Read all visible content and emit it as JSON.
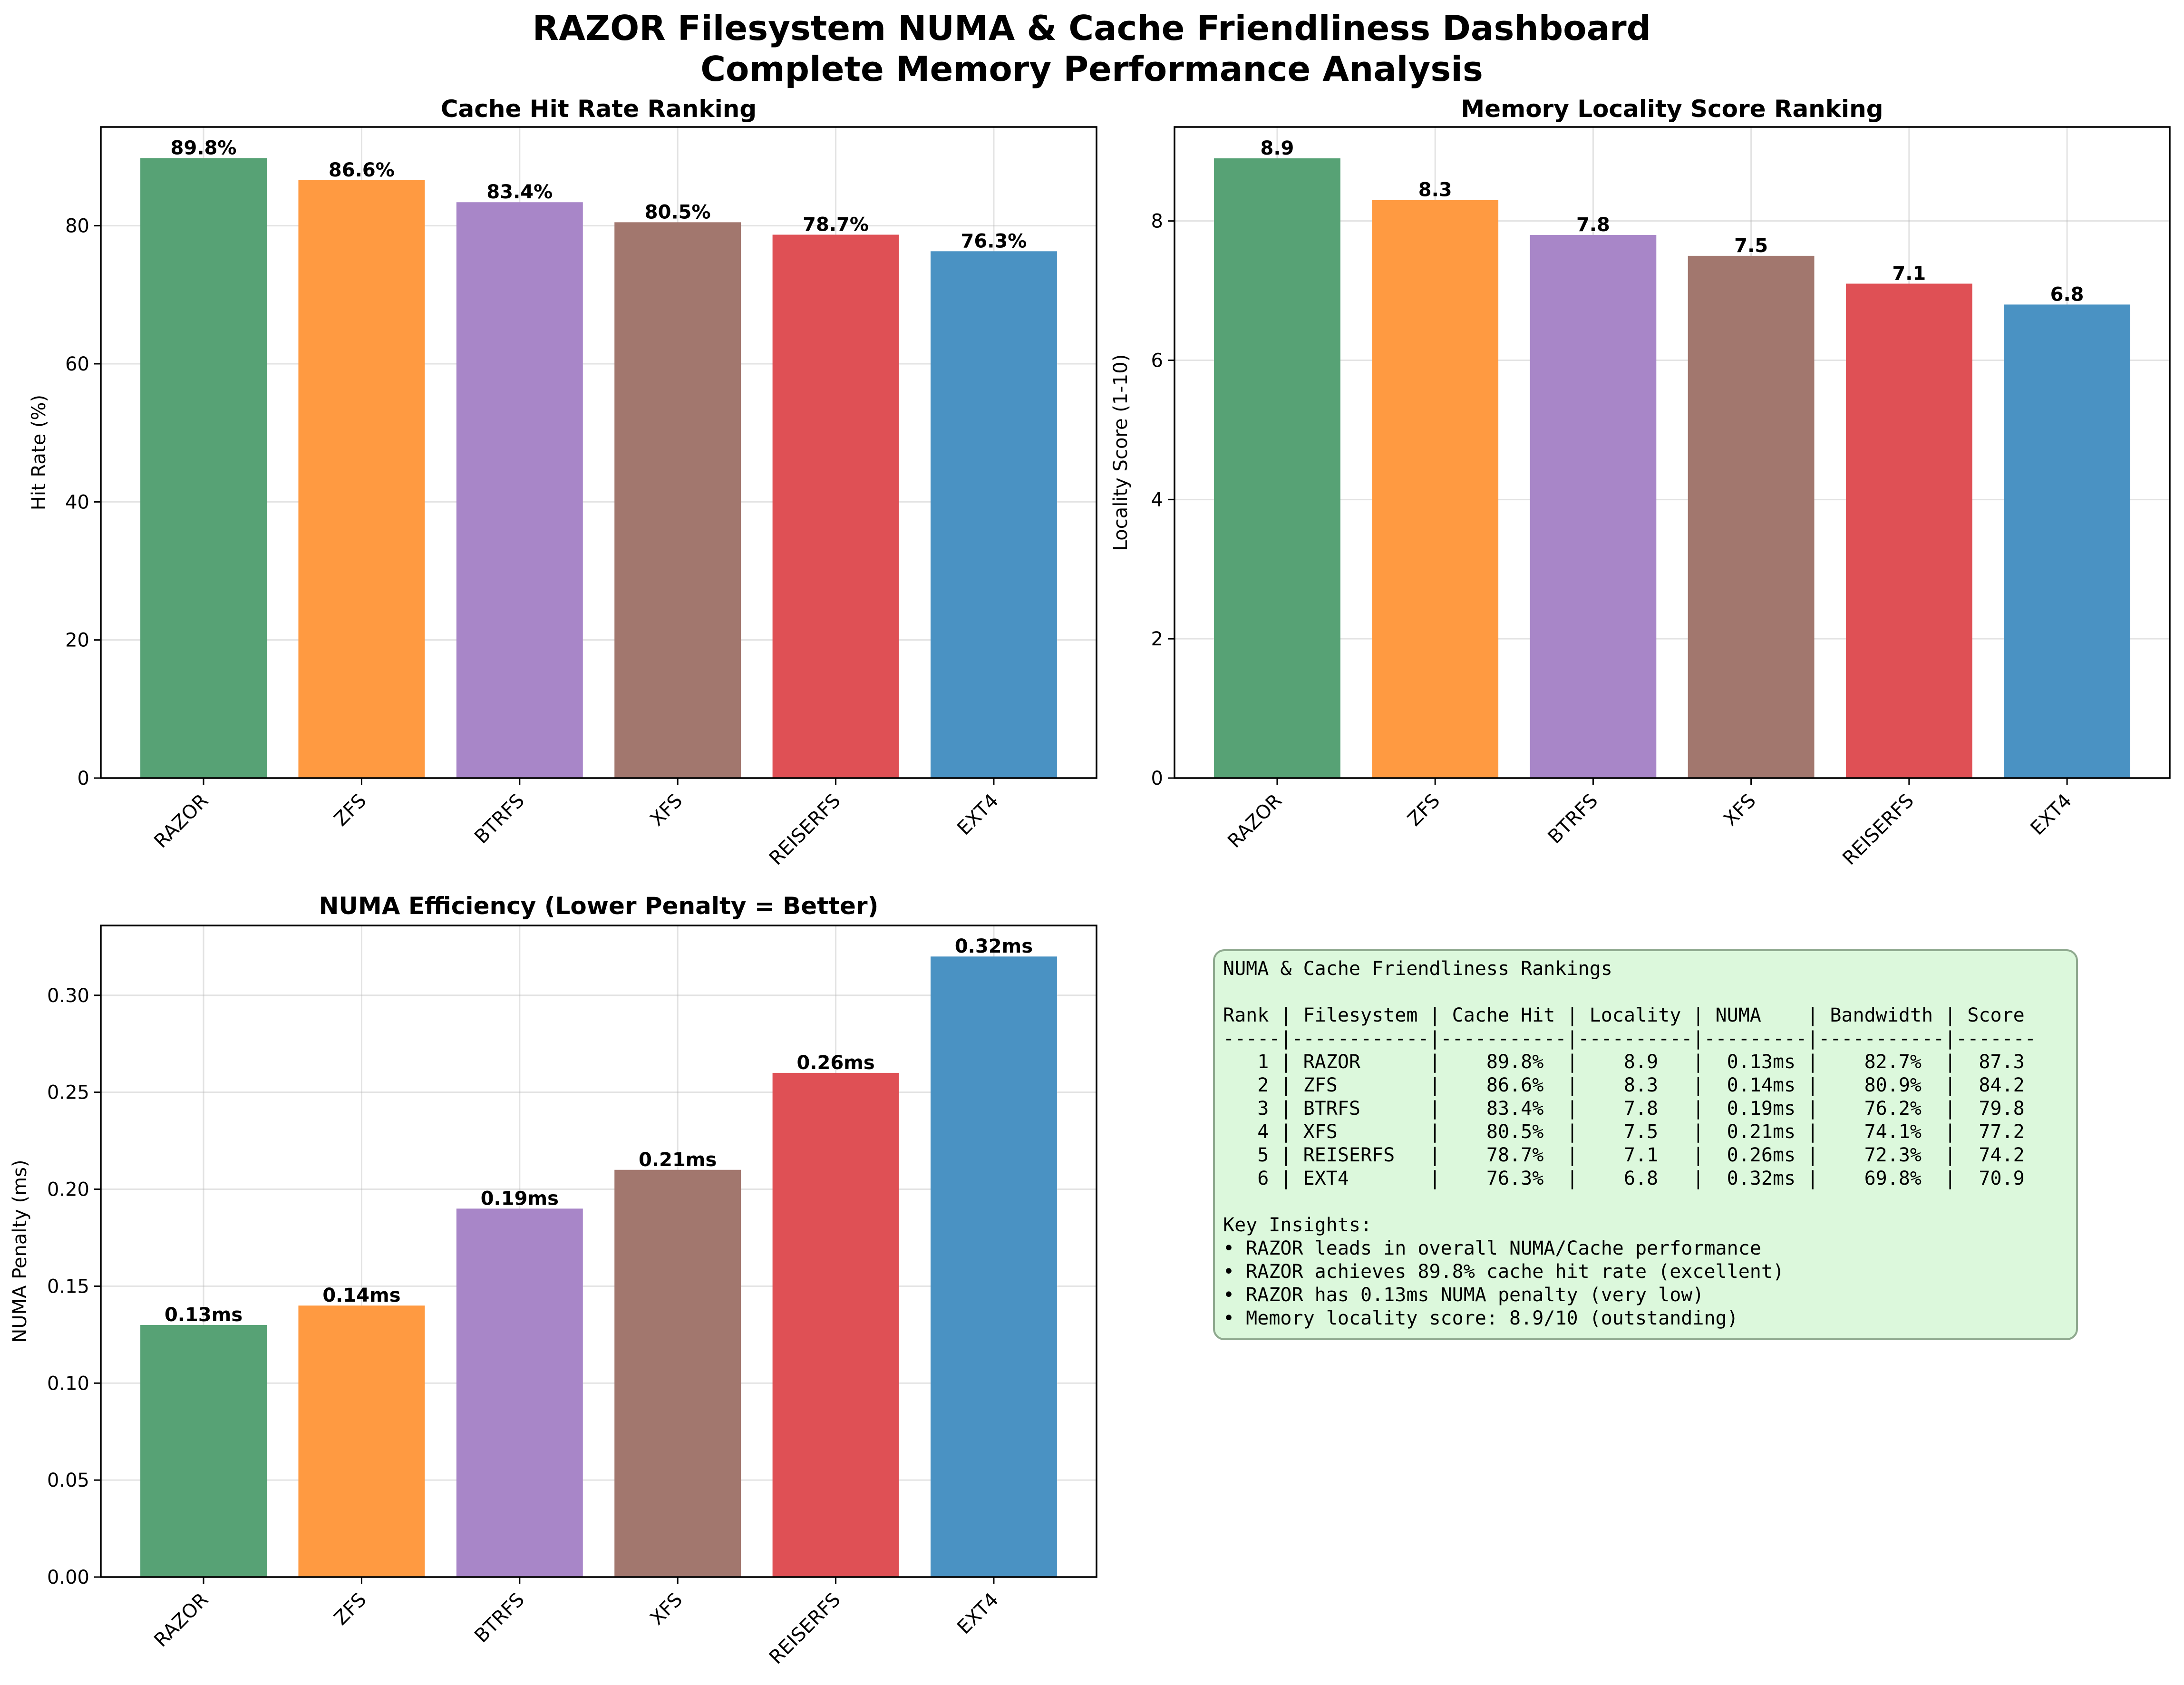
{
  "title": "RAZOR Filesystem NUMA & Cache Friendliness Dashboard",
  "subtitle": "Complete Memory Performance Analysis",
  "colors": {
    "RAZOR": "#57a275",
    "ZFS": "#ff9a41",
    "BTRFS": "#a886c8",
    "XFS": "#a2776e",
    "REISERFS": "#df5055",
    "EXT4": "#4a92c3",
    "panel_bg": "#dcf8dc",
    "panel_border": "#8fa98f"
  },
  "chart_data": [
    {
      "type": "bar",
      "title": "Cache Hit Rate Ranking",
      "xlabel": "",
      "ylabel": "Hit Rate (%)",
      "categories": [
        "RAZOR",
        "ZFS",
        "BTRFS",
        "XFS",
        "REISERFS",
        "EXT4"
      ],
      "values": [
        89.8,
        86.6,
        83.4,
        80.5,
        78.7,
        76.3
      ],
      "value_labels": [
        "89.8%",
        "86.6%",
        "83.4%",
        "80.5%",
        "78.7%",
        "76.3%"
      ],
      "ylim": [
        0,
        94.3
      ],
      "yticks": [
        0,
        20,
        40,
        60,
        80
      ],
      "ytick_labels": [
        "0",
        "20",
        "40",
        "60",
        "80"
      ],
      "grid": true
    },
    {
      "type": "bar",
      "title": "Memory Locality Score Ranking",
      "xlabel": "",
      "ylabel": "Locality Score (1-10)",
      "categories": [
        "RAZOR",
        "ZFS",
        "BTRFS",
        "XFS",
        "REISERFS",
        "EXT4"
      ],
      "values": [
        8.9,
        8.3,
        7.8,
        7.5,
        7.1,
        6.8
      ],
      "value_labels": [
        "8.9",
        "8.3",
        "7.8",
        "7.5",
        "7.1",
        "6.8"
      ],
      "ylim": [
        0,
        9.35
      ],
      "yticks": [
        0,
        2,
        4,
        6,
        8
      ],
      "ytick_labels": [
        "0",
        "2",
        "4",
        "6",
        "8"
      ],
      "grid": true
    },
    {
      "type": "bar",
      "title": "NUMA Efficiency (Lower Penalty = Better)",
      "xlabel": "",
      "ylabel": "NUMA Penalty (ms)",
      "categories": [
        "RAZOR",
        "ZFS",
        "BTRFS",
        "XFS",
        "REISERFS",
        "EXT4"
      ],
      "values": [
        0.13,
        0.14,
        0.19,
        0.21,
        0.26,
        0.32
      ],
      "value_labels": [
        "0.13ms",
        "0.14ms",
        "0.19ms",
        "0.21ms",
        "0.26ms",
        "0.32ms"
      ],
      "ylim": [
        0,
        0.336
      ],
      "yticks": [
        0,
        0.05,
        0.1,
        0.15,
        0.2,
        0.25,
        0.3
      ],
      "ytick_labels": [
        "0.00",
        "0.05",
        "0.10",
        "0.15",
        "0.20",
        "0.25",
        "0.30"
      ],
      "grid": true
    },
    {
      "type": "table",
      "title": "NUMA & Cache Friendliness Rankings",
      "header": "Rank | Filesystem | Cache Hit | Locality | NUMA    | Bandwidth | Score",
      "separator": "-----|------------|-----------|----------|---------|-----------|-------",
      "rows": [
        "   1 | RAZOR      |    89.8%  |    8.9   |  0.13ms |    82.7%  |  87.3",
        "   2 | ZFS        |    86.6%  |    8.3   |  0.14ms |    80.9%  |  84.2",
        "   3 | BTRFS      |    83.4%  |    7.8   |  0.19ms |    76.2%  |  79.8",
        "   4 | XFS        |    80.5%  |    7.5   |  0.21ms |    74.1%  |  77.2",
        "   5 | REISERFS   |    78.7%  |    7.1   |  0.26ms |    72.3%  |  74.2",
        "   6 | EXT4       |    76.3%  |    6.8   |  0.32ms |    69.8%  |  70.9"
      ],
      "insights_title": "Key Insights:",
      "insights": [
        "• RAZOR leads in overall NUMA/Cache performance",
        "• RAZOR achieves 89.8% cache hit rate (excellent)",
        "• RAZOR has 0.13ms NUMA penalty (very low)",
        "• Memory locality score: 8.9/10 (outstanding)"
      ]
    }
  ]
}
